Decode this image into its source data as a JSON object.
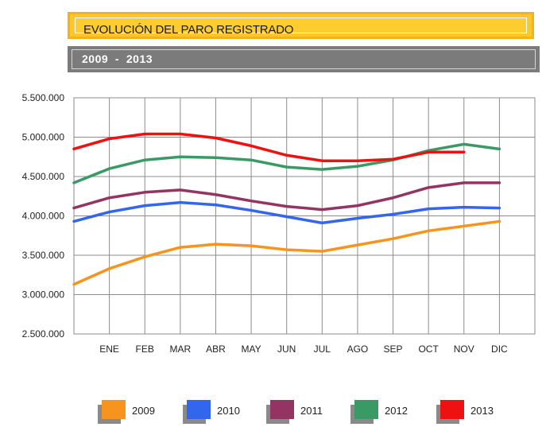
{
  "header": {
    "title": "EVOLUCIÓN DEL PARO REGISTRADO",
    "subtitle": "2009  -  2013"
  },
  "chart_data": {
    "type": "line",
    "categories": [
      "",
      "ENE",
      "FEB",
      "MAR",
      "ABR",
      "MAY",
      "JUN",
      "JUL",
      "AGO",
      "SEP",
      "OCT",
      "NOV",
      "DIC"
    ],
    "ylim": [
      2500000,
      5500000
    ],
    "yticks": [
      "2.500.000",
      "3.000.000",
      "3.500.000",
      "4.000.000",
      "4.500.000",
      "5.000.000",
      "5.500.000"
    ],
    "grid": true,
    "legend_position": "bottom",
    "series": [
      {
        "name": "2009",
        "color": "#f7941d",
        "values": [
          3130000,
          3330000,
          3480000,
          3600000,
          3640000,
          3620000,
          3570000,
          3550000,
          3630000,
          3710000,
          3810000,
          3870000,
          3930000
        ]
      },
      {
        "name": "2010",
        "color": "#3366ee",
        "values": [
          3930000,
          4050000,
          4130000,
          4170000,
          4140000,
          4070000,
          3990000,
          3910000,
          3970000,
          4020000,
          4090000,
          4110000,
          4100000
        ]
      },
      {
        "name": "2011",
        "color": "#943463",
        "values": [
          4100000,
          4230000,
          4300000,
          4330000,
          4270000,
          4190000,
          4120000,
          4080000,
          4130000,
          4230000,
          4360000,
          4420000,
          4420000
        ]
      },
      {
        "name": "2012",
        "color": "#3a9a66",
        "values": [
          4420000,
          4600000,
          4710000,
          4750000,
          4740000,
          4710000,
          4620000,
          4590000,
          4630000,
          4710000,
          4830000,
          4910000,
          4850000
        ]
      },
      {
        "name": "2013",
        "color": "#ee1111",
        "values": [
          4850000,
          4980000,
          5040000,
          5040000,
          4990000,
          4890000,
          4770000,
          4700000,
          4700000,
          4720000,
          4810000,
          4810000,
          null
        ]
      }
    ]
  }
}
